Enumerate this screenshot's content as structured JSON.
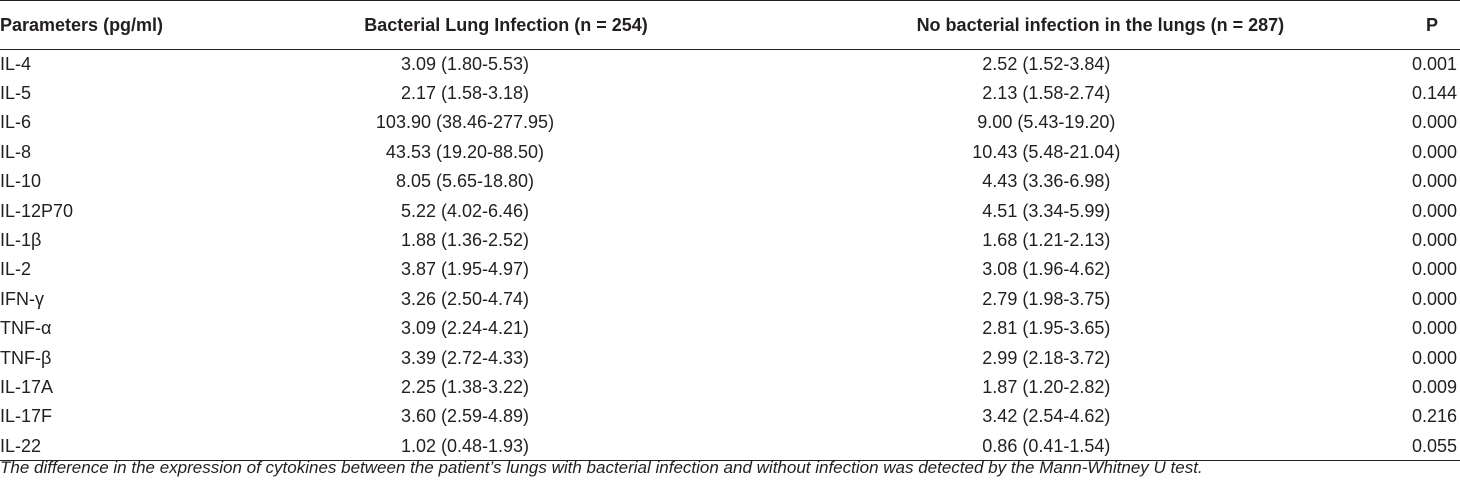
{
  "table": {
    "headers": {
      "parameters": "Parameters (pg/ml)",
      "bacterial": "Bacterial Lung Infection (n = 254)",
      "no_bacterial": "No bacterial infection in the lungs (n = 287)",
      "p": "P"
    },
    "rows": [
      {
        "param": "IL-4",
        "bacterial": "3.09 (1.80-5.53)",
        "no_bacterial": "2.52 (1.52-3.84)",
        "p": "0.001"
      },
      {
        "param": "IL-5",
        "bacterial": "2.17 (1.58-3.18)",
        "no_bacterial": "2.13 (1.58-2.74)",
        "p": "0.144"
      },
      {
        "param": "IL-6",
        "bacterial": "103.90 (38.46-277.95)",
        "no_bacterial": "9.00 (5.43-19.20)",
        "p": "0.000"
      },
      {
        "param": "IL-8",
        "bacterial": "43.53 (19.20-88.50)",
        "no_bacterial": "10.43 (5.48-21.04)",
        "p": "0.000"
      },
      {
        "param": "IL-10",
        "bacterial": "8.05 (5.65-18.80)",
        "no_bacterial": "4.43 (3.36-6.98)",
        "p": "0.000"
      },
      {
        "param": "IL-12P70",
        "bacterial": "5.22 (4.02-6.46)",
        "no_bacterial": "4.51 (3.34-5.99)",
        "p": "0.000"
      },
      {
        "param": "IL-1β",
        "bacterial": "1.88 (1.36-2.52)",
        "no_bacterial": "1.68 (1.21-2.13)",
        "p": "0.000"
      },
      {
        "param": "IL-2",
        "bacterial": "3.87 (1.95-4.97)",
        "no_bacterial": "3.08 (1.96-4.62)",
        "p": "0.000"
      },
      {
        "param": "IFN-γ",
        "bacterial": "3.26 (2.50-4.74)",
        "no_bacterial": "2.79 (1.98-3.75)",
        "p": "0.000"
      },
      {
        "param": "TNF-α",
        "bacterial": "3.09 (2.24-4.21)",
        "no_bacterial": "2.81 (1.95-3.65)",
        "p": "0.000"
      },
      {
        "param": "TNF-β",
        "bacterial": "3.39 (2.72-4.33)",
        "no_bacterial": "2.99 (2.18-3.72)",
        "p": "0.000"
      },
      {
        "param": "IL-17A",
        "bacterial": "2.25 (1.38-3.22)",
        "no_bacterial": "1.87 (1.20-2.82)",
        "p": "0.009"
      },
      {
        "param": "IL-17F",
        "bacterial": "3.60 (2.59-4.89)",
        "no_bacterial": "3.42 (2.54-4.62)",
        "p": "0.216"
      },
      {
        "param": "IL-22",
        "bacterial": "1.02 (0.48-1.93)",
        "no_bacterial": "0.86 (0.41-1.54)",
        "p": "0.055"
      }
    ]
  },
  "footnote": "The difference in the expression of cytokines between the patient’s lungs with bacterial infection and without infection was detected by the Mann-Whitney U test."
}
